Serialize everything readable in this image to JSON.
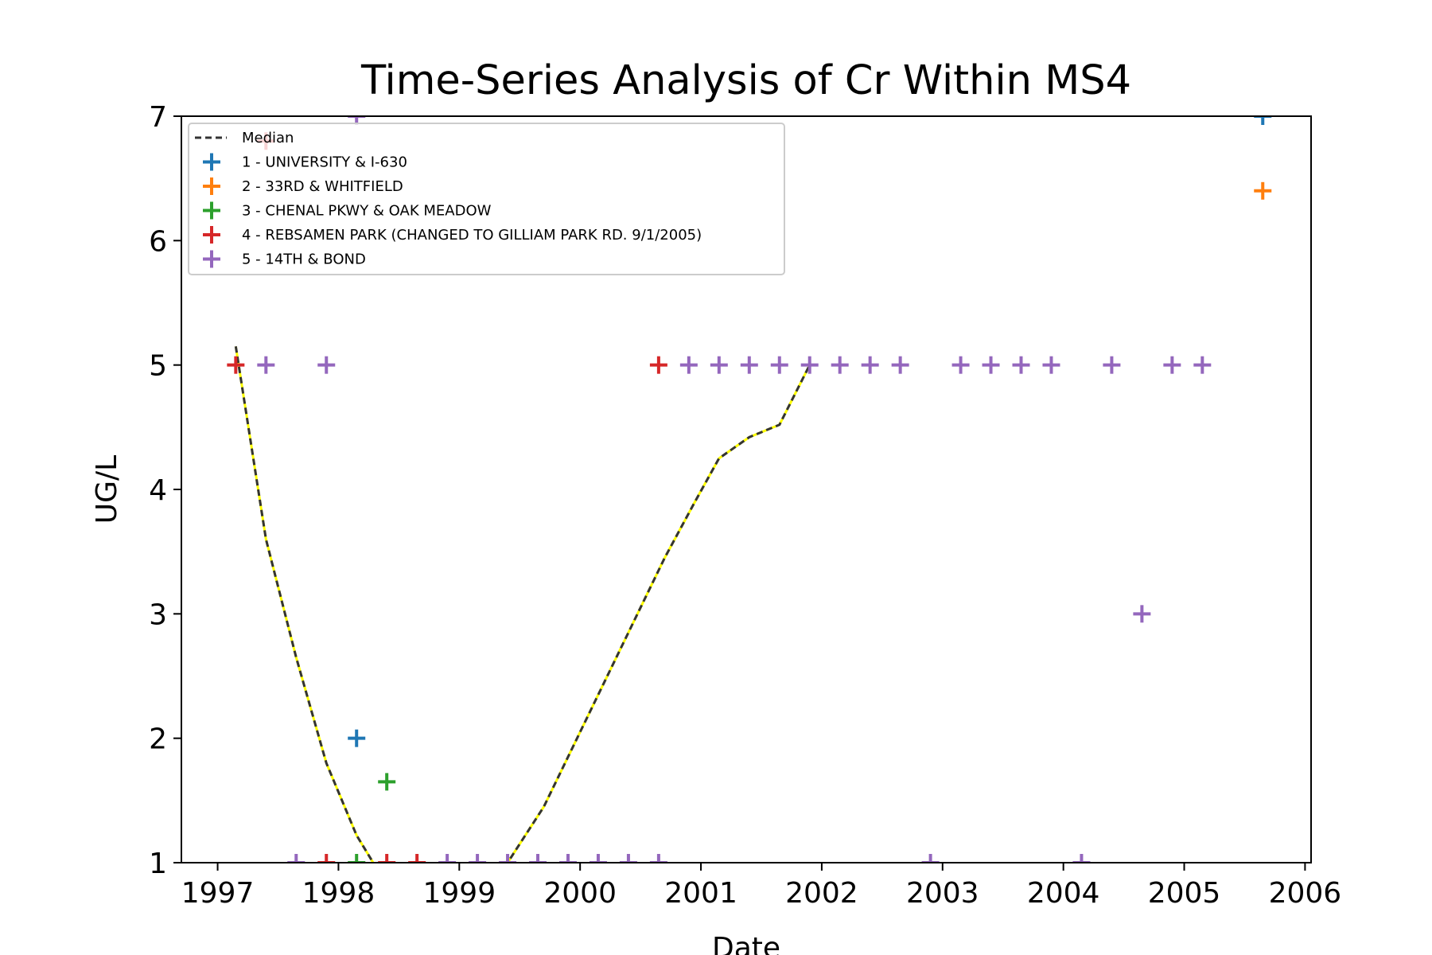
{
  "chart_data": {
    "type": "scatter",
    "title": "Time-Series Analysis of Cr Within MS4",
    "xlabel": "Date",
    "ylabel": "UG/L",
    "xlim": [
      1996.7,
      2006.05
    ],
    "ylim": [
      1,
      7
    ],
    "xticks": [
      1997,
      1998,
      1999,
      2000,
      2001,
      2002,
      2003,
      2004,
      2005,
      2006
    ],
    "xtick_labels": [
      "1997",
      "1998",
      "1999",
      "2000",
      "2001",
      "2002",
      "2003",
      "2004",
      "2005",
      "2006"
    ],
    "yticks": [
      1,
      2,
      3,
      4,
      5,
      6,
      7
    ],
    "ytick_labels": [
      "1",
      "2",
      "3",
      "4",
      "5",
      "6",
      "7"
    ],
    "grid": false,
    "legend_position": "top-left",
    "median": {
      "name": "Median",
      "color": "#333333",
      "highlight_color": "#ffff00",
      "x": [
        1997.15,
        1997.4,
        1997.65,
        1997.9,
        1998.15,
        1998.3,
        1998.5,
        1999.0,
        1999.4,
        1999.7,
        1999.95,
        2000.2,
        2000.45,
        2000.7,
        2000.95,
        2001.15,
        2001.4,
        2001.65,
        2001.9
      ],
      "y": [
        5.15,
        3.6,
        2.65,
        1.8,
        1.22,
        0.98,
        0.8,
        0.8,
        1.0,
        1.45,
        1.95,
        2.45,
        2.95,
        3.45,
        3.9,
        4.25,
        4.42,
        4.52,
        5.0
      ]
    },
    "series": [
      {
        "name": "1 - UNIVERSITY & I-630",
        "color": "#1f77b4",
        "x": [
          1998.15,
          2005.65
        ],
        "y": [
          2.0,
          7.0
        ]
      },
      {
        "name": "2 - 33RD & WHITFIELD",
        "color": "#ff7f0e",
        "x": [
          2005.65
        ],
        "y": [
          6.4
        ]
      },
      {
        "name": "3 - CHENAL PKWY & OAK MEADOW",
        "color": "#2ca02c",
        "x": [
          1998.15,
          1998.4
        ],
        "y": [
          1.0,
          1.65
        ]
      },
      {
        "name": "4 - REBSAMEN PARK (CHANGED TO GILLIAM PARK RD. 9/1/2005)",
        "color": "#d62728",
        "x": [
          1997.15,
          1997.4,
          1997.9,
          1998.4,
          1998.65,
          2000.65
        ],
        "y": [
          5.0,
          6.8,
          1.0,
          1.0,
          1.0,
          5.0
        ]
      },
      {
        "name": "5 - 14TH & BOND",
        "color": "#9467bd",
        "x": [
          1997.4,
          1997.65,
          1997.9,
          1998.15,
          1998.9,
          1999.15,
          1999.4,
          1999.65,
          1999.9,
          2000.15,
          2000.4,
          2000.65,
          2000.9,
          2001.15,
          2001.4,
          2001.65,
          2001.9,
          2002.15,
          2002.4,
          2002.65,
          2002.9,
          2003.15,
          2003.4,
          2003.65,
          2003.9,
          2004.15,
          2004.4,
          2004.65,
          2004.9,
          2005.15
        ],
        "y": [
          5.0,
          1.0,
          5.0,
          7.0,
          1.0,
          1.0,
          1.0,
          1.0,
          1.0,
          1.0,
          1.0,
          1.0,
          5.0,
          5.0,
          5.0,
          5.0,
          5.0,
          5.0,
          5.0,
          5.0,
          1.0,
          5.0,
          5.0,
          5.0,
          5.0,
          1.0,
          5.0,
          3.0,
          5.0,
          5.0
        ]
      }
    ]
  }
}
